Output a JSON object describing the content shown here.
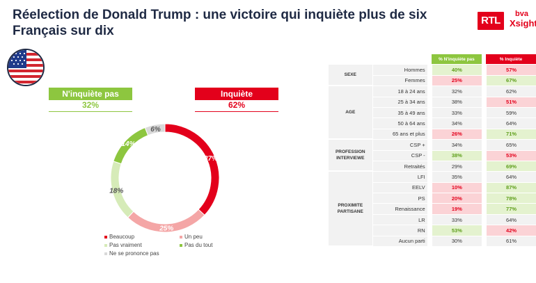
{
  "title": "Réelection de Donald Trump : une victoire qui inquiète plus de six Français sur dix",
  "logos": {
    "rtl": "RTL",
    "bva_top": "bva",
    "bva_bottom": "Xsight"
  },
  "colors": {
    "green": "#8dc63f",
    "red": "#e3001b",
    "light_red": "#f4a6a6",
    "light_green": "#d6ebb8",
    "grey": "#d9d9d9"
  },
  "categories": {
    "not_worried": {
      "label": "N'inquiète pas",
      "value": "32%"
    },
    "worried": {
      "label": "Inquiète",
      "value": "62%"
    }
  },
  "chart_data": {
    "type": "pie",
    "donut": true,
    "slices": [
      {
        "name": "Beaucoup",
        "value": 37,
        "label": "37%"
      },
      {
        "name": "Un peu",
        "value": 25,
        "label": "25%"
      },
      {
        "name": "Pas vraiment",
        "value": 18,
        "label": "18%"
      },
      {
        "name": "Pas du tout",
        "value": 14,
        "label": "14%"
      },
      {
        "name": "Ne se prononce pas",
        "value": 6,
        "label": "6%"
      }
    ],
    "legend": [
      "Beaucoup",
      "Un peu",
      "Pas vraiment",
      "Pas du tout",
      "Ne se prononce pas"
    ],
    "legend_placement": "bottom"
  },
  "table": {
    "headers": [
      "% N'inquiète pas",
      "% Inquiète"
    ],
    "groups": [
      {
        "name": "SEXE",
        "rows": [
          {
            "label": "Hommes",
            "v1": "40%",
            "v2": "57%",
            "h1": "green",
            "h2": "red"
          },
          {
            "label": "Femmes",
            "v1": "25%",
            "v2": "67%",
            "h1": "red",
            "h2": "green"
          }
        ]
      },
      {
        "name": "AGE",
        "rows": [
          {
            "label": "18 à 24 ans",
            "v1": "32%",
            "v2": "62%",
            "h1": "",
            "h2": ""
          },
          {
            "label": "25 à 34 ans",
            "v1": "38%",
            "v2": "51%",
            "h1": "",
            "h2": "red"
          },
          {
            "label": "35 à 49 ans",
            "v1": "33%",
            "v2": "59%",
            "h1": "",
            "h2": ""
          },
          {
            "label": "50 à 64 ans",
            "v1": "34%",
            "v2": "64%",
            "h1": "",
            "h2": ""
          },
          {
            "label": "65 ans et plus",
            "v1": "26%",
            "v2": "71%",
            "h1": "red",
            "h2": "green"
          }
        ]
      },
      {
        "name": "PROFESSION INTERVIEWE",
        "rows": [
          {
            "label": "CSP +",
            "v1": "34%",
            "v2": "65%",
            "h1": "",
            "h2": ""
          },
          {
            "label": "CSP -",
            "v1": "38%",
            "v2": "53%",
            "h1": "green",
            "h2": "red"
          },
          {
            "label": "Retraités",
            "v1": "29%",
            "v2": "69%",
            "h1": "",
            "h2": "green"
          }
        ]
      },
      {
        "name": "PROXIMITE PARTISANE",
        "rows": [
          {
            "label": "LFI",
            "v1": "35%",
            "v2": "64%",
            "h1": "",
            "h2": ""
          },
          {
            "label": "EELV",
            "v1": "10%",
            "v2": "87%",
            "h1": "red",
            "h2": "green"
          },
          {
            "label": "PS",
            "v1": "20%",
            "v2": "78%",
            "h1": "red",
            "h2": "green"
          },
          {
            "label": "Renaissance",
            "v1": "19%",
            "v2": "77%",
            "h1": "red",
            "h2": "green"
          },
          {
            "label": "LR",
            "v1": "33%",
            "v2": "64%",
            "h1": "",
            "h2": ""
          },
          {
            "label": "RN",
            "v1": "53%",
            "v2": "42%",
            "h1": "green",
            "h2": "red"
          },
          {
            "label": "Aucun parti",
            "v1": "30%",
            "v2": "61%",
            "h1": "",
            "h2": ""
          }
        ]
      }
    ]
  }
}
